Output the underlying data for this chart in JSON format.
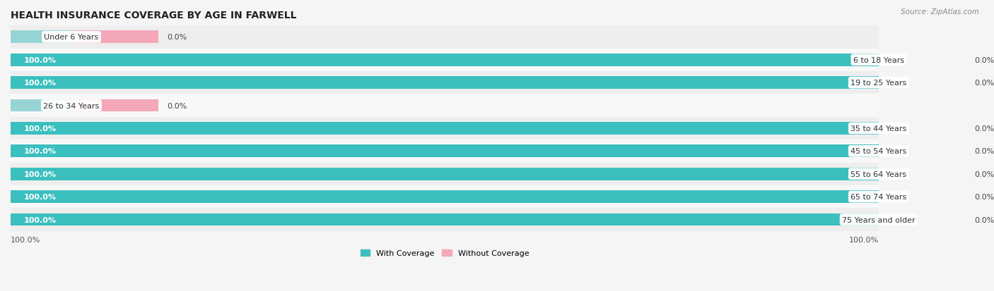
{
  "title": "HEALTH INSURANCE COVERAGE BY AGE IN FARWELL",
  "source": "Source: ZipAtlas.com",
  "categories": [
    "Under 6 Years",
    "6 to 18 Years",
    "19 to 25 Years",
    "26 to 34 Years",
    "35 to 44 Years",
    "45 to 54 Years",
    "55 to 64 Years",
    "65 to 74 Years",
    "75 Years and older"
  ],
  "with_coverage": [
    0.0,
    100.0,
    100.0,
    0.0,
    100.0,
    100.0,
    100.0,
    100.0,
    100.0
  ],
  "without_coverage": [
    0.0,
    0.0,
    0.0,
    0.0,
    0.0,
    0.0,
    0.0,
    0.0,
    0.0
  ],
  "color_with": "#3BBFBF",
  "color_with_light": "#96D4D4",
  "color_without": "#F4A7B9",
  "color_without_light": "#F4A7B9",
  "row_bg_even": "#eeeeee",
  "row_bg_odd": "#f8f8f8",
  "fig_bg": "#f5f5f5",
  "title_fontsize": 10,
  "source_fontsize": 7.5,
  "label_fontsize": 8,
  "cat_fontsize": 8,
  "legend_label_with": "With Coverage",
  "legend_label_without": "Without Coverage",
  "bar_height": 0.55,
  "stub_size": 7.0,
  "pink_stub_size": 10.0,
  "total_width": 100.0
}
